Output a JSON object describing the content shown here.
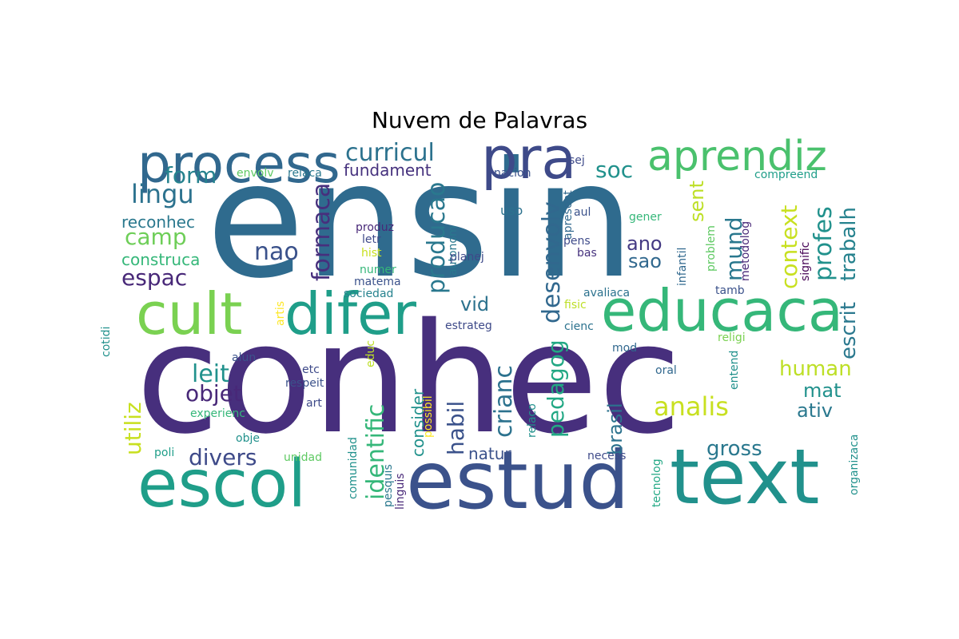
{
  "title": "Nuvem de Palavras",
  "words": [
    {
      "text": "ensin",
      "color": "#2f6b8e"
    },
    {
      "text": "conhec",
      "color": "#472f7d"
    },
    {
      "text": "estud",
      "color": "#3b528b"
    },
    {
      "text": "text",
      "color": "#21918c"
    },
    {
      "text": "escol",
      "color": "#1f9e89"
    },
    {
      "text": "process",
      "color": "#31688e"
    },
    {
      "text": "pra",
      "color": "#3e4a89"
    },
    {
      "text": "cult",
      "color": "#7ad151"
    },
    {
      "text": "difer",
      "color": "#1f9e89"
    },
    {
      "text": "educaca",
      "color": "#35b779"
    },
    {
      "text": "aprendiz",
      "color": "#4ac16d"
    },
    {
      "text": "curricul",
      "color": "#2c728e"
    },
    {
      "text": "soc",
      "color": "#21918c"
    },
    {
      "text": "form",
      "color": "#26828e"
    },
    {
      "text": "lingu",
      "color": "#2c728e"
    },
    {
      "text": "camp",
      "color": "#6ece58"
    },
    {
      "text": "reconhec",
      "color": "#2a788e"
    },
    {
      "text": "nao",
      "color": "#3b528b"
    },
    {
      "text": "construca",
      "color": "#35b779"
    },
    {
      "text": "espac",
      "color": "#482878"
    },
    {
      "text": "fundament",
      "color": "#46327e"
    },
    {
      "text": "formaca",
      "color": "#472f7d"
    },
    {
      "text": "producao",
      "color": "#2a788e"
    },
    {
      "text": "desenvolv",
      "color": "#31688e"
    },
    {
      "text": "sent",
      "color": "#bddf26"
    },
    {
      "text": "mund",
      "color": "#2a788e"
    },
    {
      "text": "context",
      "color": "#c8e020"
    },
    {
      "text": "profes",
      "color": "#21918c"
    },
    {
      "text": "trabalh",
      "color": "#26828e"
    },
    {
      "text": "escrit",
      "color": "#2a788e"
    },
    {
      "text": "envolv",
      "color": "#5ec962"
    },
    {
      "text": "relaca",
      "color": "#2a788e"
    },
    {
      "text": "nacion",
      "color": "#3b528b"
    },
    {
      "text": "sej",
      "color": "#3e4a89"
    },
    {
      "text": "compreend",
      "color": "#1f9e89"
    },
    {
      "text": "ano",
      "color": "#443983"
    },
    {
      "text": "sao",
      "color": "#31688e"
    },
    {
      "text": "vid",
      "color": "#2c728e"
    },
    {
      "text": "produz",
      "color": "#482878"
    },
    {
      "text": "letr",
      "color": "#3e4a89"
    },
    {
      "text": "hist",
      "color": "#c8e020"
    },
    {
      "text": "numer",
      "color": "#35b779"
    },
    {
      "text": "matema",
      "color": "#3b528b"
    },
    {
      "text": "sociedad",
      "color": "#26828e"
    },
    {
      "text": "uso",
      "color": "#2c728e"
    },
    {
      "text": "autonom",
      "color": "#2a788e"
    },
    {
      "text": "apresent",
      "color": "#31688e"
    },
    {
      "text": "aul",
      "color": "#3b528b"
    },
    {
      "text": "pens",
      "color": "#3e4a89"
    },
    {
      "text": "bas",
      "color": "#46327e"
    },
    {
      "text": "planej",
      "color": "#3e4a89"
    },
    {
      "text": "gener",
      "color": "#35b779"
    },
    {
      "text": "metodolog",
      "color": "#482878"
    },
    {
      "text": "infantil",
      "color": "#31688e"
    },
    {
      "text": "problem",
      "color": "#5ec962"
    },
    {
      "text": "signific",
      "color": "#440154"
    },
    {
      "text": "tamb",
      "color": "#3b528b"
    },
    {
      "text": "avaliaca",
      "color": "#2c728e"
    },
    {
      "text": "fisic",
      "color": "#bddf26"
    },
    {
      "text": "artis",
      "color": "#fde725"
    },
    {
      "text": "cotidi",
      "color": "#21918c"
    },
    {
      "text": "estrateg",
      "color": "#3e4a89"
    },
    {
      "text": "cienc",
      "color": "#2c728e"
    },
    {
      "text": "religi",
      "color": "#7ad151"
    },
    {
      "text": "mod",
      "color": "#31688e"
    },
    {
      "text": "entend",
      "color": "#21918c"
    },
    {
      "text": "oral",
      "color": "#31688e"
    },
    {
      "text": "utiliz",
      "color": "#c8e020"
    },
    {
      "text": "leit",
      "color": "#21918c"
    },
    {
      "text": "objet",
      "color": "#482878"
    },
    {
      "text": "divers",
      "color": "#3e4a89"
    },
    {
      "text": "identific",
      "color": "#35b779"
    },
    {
      "text": "crianc",
      "color": "#2c728e"
    },
    {
      "text": "pedagog",
      "color": "#22a884"
    },
    {
      "text": "habil",
      "color": "#3b528b"
    },
    {
      "text": "consider",
      "color": "#21918c"
    },
    {
      "text": "brasil",
      "color": "#2c728e"
    },
    {
      "text": "human",
      "color": "#bddf26"
    },
    {
      "text": "analis",
      "color": "#c8e020"
    },
    {
      "text": "mat",
      "color": "#21918c"
    },
    {
      "text": "ativ",
      "color": "#2a788e"
    },
    {
      "text": "gross",
      "color": "#2a788e"
    },
    {
      "text": "natur",
      "color": "#3b528b"
    },
    {
      "text": "necess",
      "color": "#3e4a89"
    },
    {
      "text": "alun",
      "color": "#3b528b"
    },
    {
      "text": "etc",
      "color": "#3e4a89"
    },
    {
      "text": "respeit",
      "color": "#3b528b"
    },
    {
      "text": "art",
      "color": "#3e4a89"
    },
    {
      "text": "experienc",
      "color": "#35b779"
    },
    {
      "text": "obje",
      "color": "#21918c"
    },
    {
      "text": "poli",
      "color": "#1f9e89"
    },
    {
      "text": "unidad",
      "color": "#5ec962"
    },
    {
      "text": "comunidad",
      "color": "#21918c"
    },
    {
      "text": "pesquis",
      "color": "#2a788e"
    },
    {
      "text": "linguis",
      "color": "#482878"
    },
    {
      "text": "possibil",
      "color": "#fde725"
    },
    {
      "text": "educ",
      "color": "#bddf26"
    },
    {
      "text": "relaco",
      "color": "#21918c"
    },
    {
      "text": "tecnolog",
      "color": "#22a884"
    },
    {
      "text": "organizaca",
      "color": "#21918c"
    }
  ]
}
